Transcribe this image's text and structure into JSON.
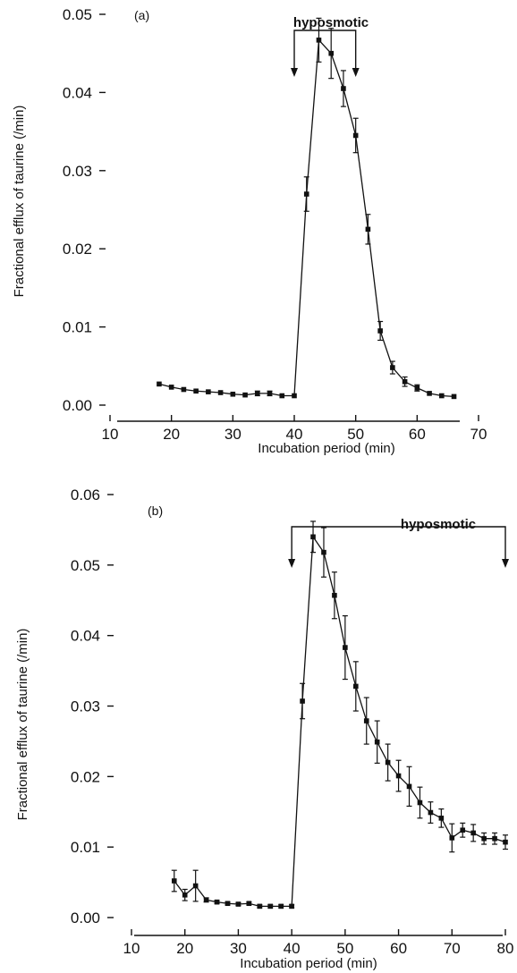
{
  "chart_data": [
    {
      "type": "line",
      "panel_label": "(a)",
      "xlabel": "Incubation period (min)",
      "ylabel": "Fractional efflux of taurine (/min)",
      "xlim": [
        10,
        70
      ],
      "ylim": [
        0,
        0.05
      ],
      "xticks": [
        10,
        20,
        30,
        40,
        50,
        60,
        70
      ],
      "xtick_labels": [
        "10",
        "20",
        "30",
        "40",
        "50",
        "60",
        "70"
      ],
      "yticks": [
        0,
        0.01,
        0.02,
        0.03,
        0.04,
        0.05
      ],
      "ytick_labels": [
        "0.00",
        "0.01",
        "0.02",
        "0.03",
        "0.04",
        "0.05"
      ],
      "annotation": {
        "text": "hyposmotic",
        "x_start": 40,
        "x_end": 50
      },
      "grid": false,
      "series": [
        {
          "x": [
            18,
            20,
            22,
            24,
            26,
            28,
            30,
            32,
            34,
            36,
            38,
            40,
            42,
            44,
            46,
            48,
            50,
            52,
            54,
            56,
            58,
            60,
            62,
            64,
            66
          ],
          "y": [
            0.0027,
            0.0023,
            0.002,
            0.0018,
            0.0017,
            0.0016,
            0.0014,
            0.0013,
            0.0015,
            0.0015,
            0.0012,
            0.0012,
            0.027,
            0.0467,
            0.045,
            0.0405,
            0.0345,
            0.0225,
            0.0095,
            0.0048,
            0.003,
            0.0022,
            0.0015,
            0.0012,
            0.0011
          ],
          "err": [
            0,
            0,
            0,
            0,
            0,
            0,
            0,
            0,
            0.0003,
            0.0003,
            0,
            0,
            0.0022,
            0.0028,
            0.0032,
            0.0023,
            0.0022,
            0.0019,
            0.0012,
            0.0008,
            0.0006,
            0.0004,
            0,
            0,
            0
          ]
        }
      ]
    },
    {
      "type": "line",
      "panel_label": "(b)",
      "xlabel": "Incubation period (min)",
      "ylabel": "Fractional efflux of taurine (/min)",
      "xlim": [
        10,
        80
      ],
      "ylim": [
        0,
        0.06
      ],
      "xticks": [
        10,
        20,
        30,
        40,
        50,
        60,
        70,
        80
      ],
      "xtick_labels": [
        "10",
        "20",
        "30",
        "40",
        "50",
        "60",
        "70",
        "80"
      ],
      "yticks": [
        0,
        0.01,
        0.02,
        0.03,
        0.04,
        0.05,
        0.06
      ],
      "ytick_labels": [
        "0.00",
        "0.01",
        "0.02",
        "0.03",
        "0.04",
        "0.05",
        "0.06"
      ],
      "annotation": {
        "text": "hyposmotic",
        "x_start": 40,
        "x_end": 80
      },
      "grid": false,
      "series": [
        {
          "x": [
            18,
            20,
            22,
            24,
            26,
            28,
            30,
            32,
            34,
            36,
            38,
            40,
            42,
            44,
            46,
            48,
            50,
            52,
            54,
            56,
            58,
            60,
            62,
            64,
            66,
            68,
            70,
            72,
            74,
            76,
            78,
            80
          ],
          "y": [
            0.0052,
            0.0032,
            0.0045,
            0.0025,
            0.0022,
            0.002,
            0.0019,
            0.002,
            0.0016,
            0.0016,
            0.0016,
            0.0016,
            0.0307,
            0.054,
            0.0518,
            0.0457,
            0.0383,
            0.0328,
            0.0279,
            0.0249,
            0.022,
            0.0201,
            0.0186,
            0.0163,
            0.0149,
            0.0141,
            0.0113,
            0.0124,
            0.012,
            0.0112,
            0.0112,
            0.0107
          ],
          "err": [
            0.0015,
            0.0008,
            0.0022,
            0.0003,
            0.0002,
            0.0002,
            0.0002,
            0.0002,
            0.0002,
            0.0002,
            0.0002,
            0.0002,
            0.0025,
            0.0022,
            0.0035,
            0.0033,
            0.0045,
            0.0035,
            0.0033,
            0.003,
            0.0026,
            0.0022,
            0.0028,
            0.0022,
            0.0015,
            0.0013,
            0.002,
            0.001,
            0.0012,
            0.0008,
            0.0008,
            0.001
          ]
        }
      ]
    }
  ]
}
